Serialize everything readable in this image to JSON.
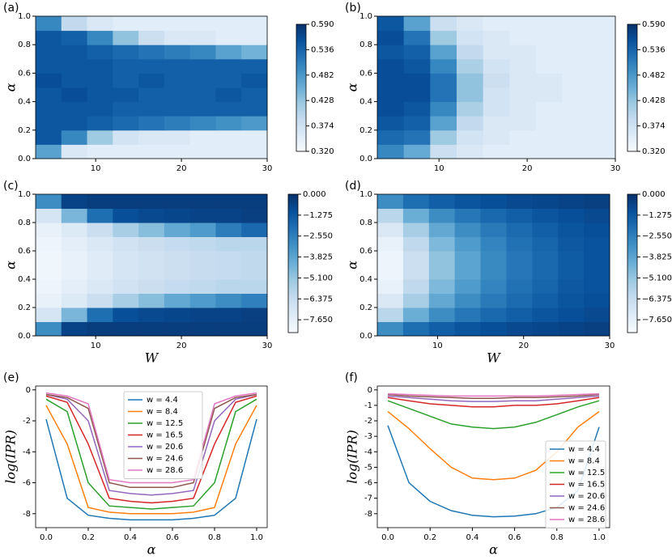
{
  "chart_data": [
    {
      "type": "heatmap",
      "title": "(a)",
      "ylabel": "α",
      "cmap": "Blues",
      "x": [
        4.5,
        7.5,
        10.5,
        13.5,
        16.5,
        19.5,
        22.5,
        25.5,
        28.5
      ],
      "y": [
        0.05,
        0.15,
        0.25,
        0.35,
        0.45,
        0.55,
        0.65,
        0.75,
        0.85,
        0.95
      ],
      "z": [
        [
          0.47,
          0.36,
          0.35,
          0.35,
          0.35,
          0.35,
          0.35,
          0.35,
          0.35
        ],
        [
          0.55,
          0.5,
          0.42,
          0.37,
          0.36,
          0.36,
          0.35,
          0.35,
          0.35
        ],
        [
          0.55,
          0.55,
          0.54,
          0.53,
          0.52,
          0.51,
          0.5,
          0.49,
          0.48
        ],
        [
          0.55,
          0.55,
          0.55,
          0.54,
          0.54,
          0.54,
          0.54,
          0.54,
          0.54
        ],
        [
          0.55,
          0.56,
          0.55,
          0.55,
          0.54,
          0.54,
          0.54,
          0.55,
          0.54
        ],
        [
          0.56,
          0.55,
          0.55,
          0.54,
          0.55,
          0.54,
          0.54,
          0.54,
          0.55
        ],
        [
          0.55,
          0.55,
          0.55,
          0.54,
          0.54,
          0.54,
          0.54,
          0.54,
          0.54
        ],
        [
          0.55,
          0.55,
          0.54,
          0.53,
          0.52,
          0.51,
          0.5,
          0.47,
          0.45
        ],
        [
          0.55,
          0.54,
          0.5,
          0.43,
          0.38,
          0.36,
          0.36,
          0.35,
          0.35
        ],
        [
          0.5,
          0.39,
          0.36,
          0.35,
          0.35,
          0.35,
          0.35,
          0.35,
          0.35
        ]
      ],
      "xlim": [
        3,
        30
      ],
      "xticks": [
        10,
        20,
        30
      ],
      "ylim": [
        0,
        1
      ],
      "yticks": [
        {
          "value": 0,
          "label": "0.0"
        },
        0.2,
        0.4,
        0.6,
        0.8,
        {
          "value": 1,
          "label": "1.0"
        }
      ],
      "clim": [
        0.32,
        0.59
      ],
      "cticks": [
        {
          "value": 0.32,
          "label": "0.320"
        },
        {
          "value": 0.374,
          "label": "0.374"
        },
        {
          "value": 0.428,
          "label": "0.428"
        },
        {
          "value": 0.482,
          "label": "0.482"
        },
        {
          "value": 0.536,
          "label": "0.536"
        },
        {
          "value": 0.59,
          "label": "0.590"
        }
      ]
    },
    {
      "type": "heatmap",
      "title": "(b)",
      "ylabel": "α",
      "cmap": "Blues",
      "x": [
        4.5,
        7.5,
        10.5,
        13.5,
        16.5,
        19.5,
        22.5,
        25.5,
        28.5
      ],
      "y": [
        0.05,
        0.15,
        0.25,
        0.35,
        0.45,
        0.55,
        0.65,
        0.75,
        0.85,
        0.95
      ],
      "z": [
        [
          0.5,
          0.46,
          0.38,
          0.36,
          0.35,
          0.35,
          0.35,
          0.35,
          0.35
        ],
        [
          0.53,
          0.52,
          0.42,
          0.37,
          0.36,
          0.35,
          0.35,
          0.35,
          0.35
        ],
        [
          0.55,
          0.54,
          0.47,
          0.39,
          0.36,
          0.36,
          0.35,
          0.35,
          0.35
        ],
        [
          0.56,
          0.55,
          0.5,
          0.41,
          0.37,
          0.36,
          0.35,
          0.35,
          0.35
        ],
        [
          0.56,
          0.56,
          0.52,
          0.43,
          0.37,
          0.36,
          0.36,
          0.35,
          0.35
        ],
        [
          0.56,
          0.56,
          0.52,
          0.43,
          0.38,
          0.36,
          0.36,
          0.35,
          0.35
        ],
        [
          0.56,
          0.55,
          0.5,
          0.41,
          0.37,
          0.36,
          0.35,
          0.35,
          0.35
        ],
        [
          0.55,
          0.54,
          0.47,
          0.39,
          0.36,
          0.36,
          0.35,
          0.35,
          0.35
        ],
        [
          0.56,
          0.52,
          0.42,
          0.37,
          0.36,
          0.35,
          0.35,
          0.35,
          0.35
        ],
        [
          0.55,
          0.47,
          0.38,
          0.36,
          0.35,
          0.35,
          0.35,
          0.35,
          0.35
        ]
      ],
      "xlim": [
        3,
        30
      ],
      "xticks": [
        10,
        20,
        30
      ],
      "ylim": [
        0,
        1
      ],
      "yticks": [
        {
          "value": 0,
          "label": "0.0"
        },
        0.2,
        0.4,
        0.6,
        0.8,
        {
          "value": 1,
          "label": "1.0"
        }
      ],
      "clim": [
        0.32,
        0.59
      ],
      "cticks": [
        {
          "value": 0.32,
          "label": "0.320"
        },
        {
          "value": 0.374,
          "label": "0.374"
        },
        {
          "value": 0.428,
          "label": "0.428"
        },
        {
          "value": 0.482,
          "label": "0.482"
        },
        {
          "value": 0.536,
          "label": "0.536"
        },
        {
          "value": 0.59,
          "label": "0.590"
        }
      ]
    },
    {
      "type": "heatmap",
      "title": "(c)",
      "xlabel": "W",
      "ylabel": "α",
      "cmap": "Blues",
      "x": [
        4.5,
        7.5,
        10.5,
        13.5,
        16.5,
        19.5,
        22.5,
        25.5,
        28.5
      ],
      "y": [
        0.05,
        0.15,
        0.25,
        0.35,
        0.45,
        0.55,
        0.65,
        0.75,
        0.85,
        0.95
      ],
      "z": [
        [
          -3.0,
          -0.6,
          -0.4,
          -0.4,
          -0.4,
          -0.4,
          -0.4,
          -0.4,
          -0.4
        ],
        [
          -7.0,
          -4.5,
          -2.0,
          -1.0,
          -0.8,
          -0.7,
          -0.6,
          -0.6,
          -0.5
        ],
        [
          -7.8,
          -7.3,
          -6.5,
          -5.5,
          -4.8,
          -4.0,
          -3.5,
          -3.0,
          -2.6
        ],
        [
          -8.0,
          -7.6,
          -7.2,
          -6.8,
          -6.5,
          -6.3,
          -6.2,
          -6.0,
          -6.0
        ],
        [
          -8.1,
          -7.8,
          -7.4,
          -7.0,
          -6.8,
          -6.6,
          -6.4,
          -6.3,
          -6.2
        ],
        [
          -8.1,
          -7.8,
          -7.4,
          -7.0,
          -6.8,
          -6.6,
          -6.4,
          -6.3,
          -6.2
        ],
        [
          -8.0,
          -7.6,
          -7.2,
          -6.8,
          -6.5,
          -6.3,
          -6.2,
          -6.0,
          -6.0
        ],
        [
          -7.8,
          -7.3,
          -6.5,
          -5.5,
          -4.8,
          -4.0,
          -3.5,
          -2.5,
          -1.8
        ],
        [
          -7.0,
          -4.5,
          -2.0,
          -1.0,
          -0.8,
          -0.7,
          -0.6,
          -0.6,
          -0.5
        ],
        [
          -3.0,
          -0.6,
          -0.4,
          -0.4,
          -0.4,
          -0.4,
          -0.4,
          -0.4,
          -0.4
        ]
      ],
      "xlim": [
        3,
        30
      ],
      "xticks": [
        10,
        20,
        30
      ],
      "ylim": [
        0,
        1
      ],
      "yticks": [
        {
          "value": 0,
          "label": "0.0"
        },
        0.2,
        0.4,
        0.6,
        0.8,
        {
          "value": 1,
          "label": "1.0"
        }
      ],
      "clim": [
        -8.43,
        0
      ],
      "cticks": [
        {
          "value": 0,
          "label": "0.000"
        },
        {
          "value": -1.275,
          "label": "−1.275"
        },
        {
          "value": -2.55,
          "label": "−2.550"
        },
        {
          "value": -3.825,
          "label": "−3.825"
        },
        {
          "value": -5.1,
          "label": "−5.100"
        },
        {
          "value": -6.375,
          "label": "−6.375"
        },
        {
          "value": -7.65,
          "label": "−7.650"
        }
      ]
    },
    {
      "type": "heatmap",
      "title": "(d)",
      "xlabel": "W",
      "ylabel": "α",
      "cmap": "Blues",
      "x": [
        4.5,
        7.5,
        10.5,
        13.5,
        16.5,
        19.5,
        22.5,
        25.5,
        28.5
      ],
      "y": [
        0.05,
        0.15,
        0.25,
        0.35,
        0.45,
        0.55,
        0.65,
        0.75,
        0.85,
        0.95
      ],
      "z": [
        [
          -3.0,
          -2.0,
          -1.5,
          -1.2,
          -1.0,
          -0.8,
          -0.7,
          -0.6,
          -0.5
        ],
        [
          -6.0,
          -4.2,
          -3.0,
          -2.3,
          -1.8,
          -1.5,
          -1.2,
          -1.0,
          -0.8
        ],
        [
          -7.2,
          -5.5,
          -4.0,
          -3.0,
          -2.4,
          -1.9,
          -1.5,
          -1.2,
          -1.0
        ],
        [
          -7.8,
          -6.2,
          -4.6,
          -3.5,
          -2.7,
          -2.1,
          -1.7,
          -1.3,
          -1.1
        ],
        [
          -8.0,
          -6.6,
          -5.0,
          -3.8,
          -2.9,
          -2.3,
          -1.8,
          -1.4,
          -1.1
        ],
        [
          -8.0,
          -6.6,
          -5.0,
          -3.8,
          -2.9,
          -2.3,
          -1.8,
          -1.4,
          -1.1
        ],
        [
          -7.8,
          -6.2,
          -4.6,
          -3.5,
          -2.7,
          -2.1,
          -1.7,
          -1.3,
          -1.1
        ],
        [
          -7.2,
          -5.5,
          -4.0,
          -3.0,
          -2.4,
          -1.9,
          -1.5,
          -1.2,
          -1.0
        ],
        [
          -6.0,
          -4.2,
          -3.0,
          -2.3,
          -1.8,
          -1.5,
          -1.2,
          -1.0,
          -0.8
        ],
        [
          -3.0,
          -2.0,
          -1.5,
          -1.2,
          -1.0,
          -0.8,
          -0.7,
          -0.6,
          -0.5
        ]
      ],
      "xlim": [
        3,
        30
      ],
      "xticks": [
        10,
        20,
        30
      ],
      "ylim": [
        0,
        1
      ],
      "yticks": [
        {
          "value": 0,
          "label": "0.0"
        },
        0.2,
        0.4,
        0.6,
        0.8,
        {
          "value": 1,
          "label": "1.0"
        }
      ],
      "clim": [
        -8.43,
        0
      ],
      "cticks": [
        {
          "value": 0,
          "label": "0.000"
        },
        {
          "value": -1.275,
          "label": "−1.275"
        },
        {
          "value": -2.55,
          "label": "−2.550"
        },
        {
          "value": -3.825,
          "label": "−3.825"
        },
        {
          "value": -5.1,
          "label": "−5.100"
        },
        {
          "value": -6.375,
          "label": "−6.375"
        },
        {
          "value": -7.65,
          "label": "−7.650"
        }
      ]
    },
    {
      "type": "line",
      "title": "(e)",
      "xlabel": "α",
      "ylabel": "log(IPR)",
      "legend": "upper center",
      "x": [
        0,
        0.1,
        0.2,
        0.3,
        0.4,
        0.5,
        0.6,
        0.7,
        0.8,
        0.9,
        1
      ],
      "series": [
        {
          "name": "w = 4.4",
          "color": "#1f77b4",
          "values": [
            -1.9,
            -7.0,
            -8.1,
            -8.3,
            -8.4,
            -8.4,
            -8.4,
            -8.3,
            -8.1,
            -7.0,
            -1.9
          ]
        },
        {
          "name": "w = 8.4",
          "color": "#ff7f0e",
          "values": [
            -1.0,
            -3.5,
            -7.6,
            -7.9,
            -8.0,
            -8.0,
            -8.0,
            -7.9,
            -7.6,
            -3.5,
            -1.0
          ]
        },
        {
          "name": "w = 12.5",
          "color": "#2ca02c",
          "values": [
            -0.6,
            -1.4,
            -6.0,
            -7.5,
            -7.6,
            -7.7,
            -7.6,
            -7.5,
            -6.0,
            -1.4,
            -0.6
          ]
        },
        {
          "name": "w = 16.5",
          "color": "#d62728",
          "values": [
            -0.4,
            -0.8,
            -3.5,
            -7.0,
            -7.2,
            -7.3,
            -7.2,
            -7.0,
            -3.5,
            -0.8,
            -0.4
          ]
        },
        {
          "name": "w = 20.6",
          "color": "#9467bd",
          "values": [
            -0.3,
            -0.6,
            -2.0,
            -6.5,
            -6.7,
            -6.8,
            -6.7,
            -6.5,
            -2.0,
            -0.6,
            -0.3
          ]
        },
        {
          "name": "w = 24.6",
          "color": "#8c564b",
          "values": [
            -0.3,
            -0.5,
            -1.2,
            -6.0,
            -6.3,
            -6.3,
            -6.3,
            -6.0,
            -1.2,
            -0.5,
            -0.3
          ]
        },
        {
          "name": "w = 28.6",
          "color": "#e377c2",
          "values": [
            -0.2,
            -0.4,
            -0.9,
            -5.8,
            -6.0,
            -6.0,
            -6.0,
            -5.8,
            -0.9,
            -0.4,
            -0.2
          ]
        }
      ],
      "xlim": [
        -0.05,
        1.05
      ],
      "xticks": [
        {
          "value": 0,
          "label": "0.0"
        },
        0.2,
        0.4,
        0.6,
        0.8,
        {
          "value": 1,
          "label": "1.0"
        }
      ],
      "ylim": [
        -8.9,
        0.25
      ],
      "yticks": [
        -8,
        -6,
        -4,
        -2,
        0
      ]
    },
    {
      "type": "line",
      "title": "(f)",
      "xlabel": "α",
      "ylabel": "log(IPR)",
      "legend": "lower right",
      "x": [
        0,
        0.1,
        0.2,
        0.3,
        0.4,
        0.5,
        0.6,
        0.7,
        0.8,
        0.9,
        1
      ],
      "series": [
        {
          "name": "w = 4.4",
          "color": "#1f77b4",
          "values": [
            -2.3,
            -6.0,
            -7.2,
            -7.8,
            -8.1,
            -8.2,
            -8.15,
            -8.0,
            -7.6,
            -6.5,
            -2.4
          ]
        },
        {
          "name": "w = 8.4",
          "color": "#ff7f0e",
          "values": [
            -1.4,
            -2.5,
            -3.8,
            -5.0,
            -5.7,
            -5.8,
            -5.7,
            -5.2,
            -4.0,
            -2.4,
            -1.4
          ]
        },
        {
          "name": "w = 12.5",
          "color": "#2ca02c",
          "values": [
            -0.7,
            -1.2,
            -1.7,
            -2.2,
            -2.4,
            -2.5,
            -2.4,
            -2.1,
            -1.6,
            -1.1,
            -0.7
          ]
        },
        {
          "name": "w = 16.5",
          "color": "#d62728",
          "values": [
            -0.5,
            -0.7,
            -0.9,
            -1.0,
            -1.1,
            -1.1,
            -1.0,
            -1.0,
            -0.9,
            -0.7,
            -0.5
          ]
        },
        {
          "name": "w = 20.6",
          "color": "#9467bd",
          "values": [
            -0.4,
            -0.5,
            -0.6,
            -0.7,
            -0.75,
            -0.75,
            -0.7,
            -0.7,
            -0.6,
            -0.5,
            -0.4
          ]
        },
        {
          "name": "w = 24.6",
          "color": "#8c564b",
          "values": [
            -0.3,
            -0.4,
            -0.45,
            -0.5,
            -0.55,
            -0.55,
            -0.5,
            -0.5,
            -0.45,
            -0.4,
            -0.3
          ]
        },
        {
          "name": "w = 28.6",
          "color": "#e377c2",
          "values": [
            -0.25,
            -0.3,
            -0.35,
            -0.4,
            -0.4,
            -0.4,
            -0.4,
            -0.4,
            -0.35,
            -0.3,
            -0.25
          ]
        }
      ],
      "xlim": [
        -0.05,
        1.05
      ],
      "xticks": [
        {
          "value": 0,
          "label": "0.0"
        },
        0.2,
        0.4,
        0.6,
        0.8,
        {
          "value": 1,
          "label": "1.0"
        }
      ],
      "ylim": [
        -8.9,
        0.25
      ],
      "yticks": [
        -8,
        -7,
        -6,
        -5,
        -4,
        -3,
        -2,
        -1,
        0
      ]
    }
  ]
}
